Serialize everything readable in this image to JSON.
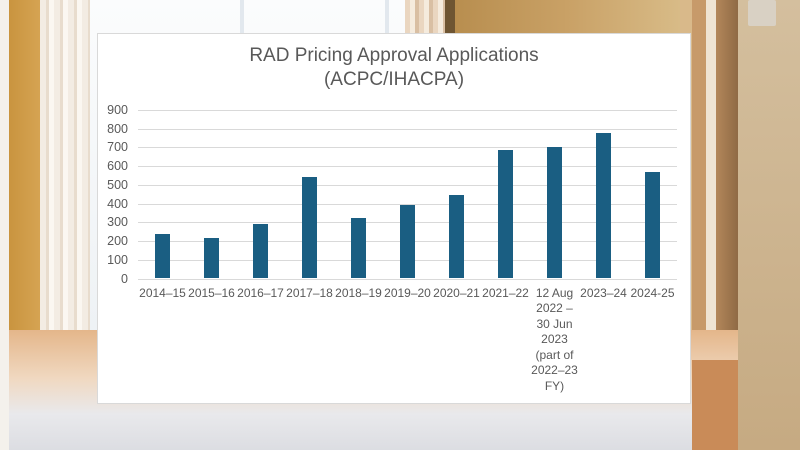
{
  "chart_data": {
    "type": "bar",
    "title": "RAD Pricing Approval Applications\n(ACPC/IHACPA)",
    "title_lines": [
      "RAD Pricing Approval Applications",
      "(ACPC/IHACPA)"
    ],
    "xlabel": "",
    "ylabel": "",
    "ylim": [
      0,
      900
    ],
    "yticks": [
      0,
      100,
      200,
      300,
      400,
      500,
      600,
      700,
      800,
      900
    ],
    "grid": true,
    "legend": null,
    "categories": [
      "2014–15",
      "2015–16",
      "2016–17",
      "2017–18",
      "2018–19",
      "2019–20",
      "2020–21",
      "2021–22",
      "12 Aug 2022 – 30 Jun 2023 (part of 2022–23 FY)",
      "2023–24",
      "2024-25"
    ],
    "category_display": [
      "2014–15",
      "2015–16",
      "2016–17",
      "2017–18",
      "2018–19",
      "2019–20",
      "2020–21",
      "2021–22",
      "12 Aug\n2022 –\n30 Jun\n2023\n(part of\n2022–23\nFY)",
      "2023–24",
      "2024-25"
    ],
    "values": [
      240,
      215,
      290,
      540,
      325,
      390,
      445,
      685,
      700,
      775,
      570
    ],
    "bar_color": "#1a5e82"
  }
}
